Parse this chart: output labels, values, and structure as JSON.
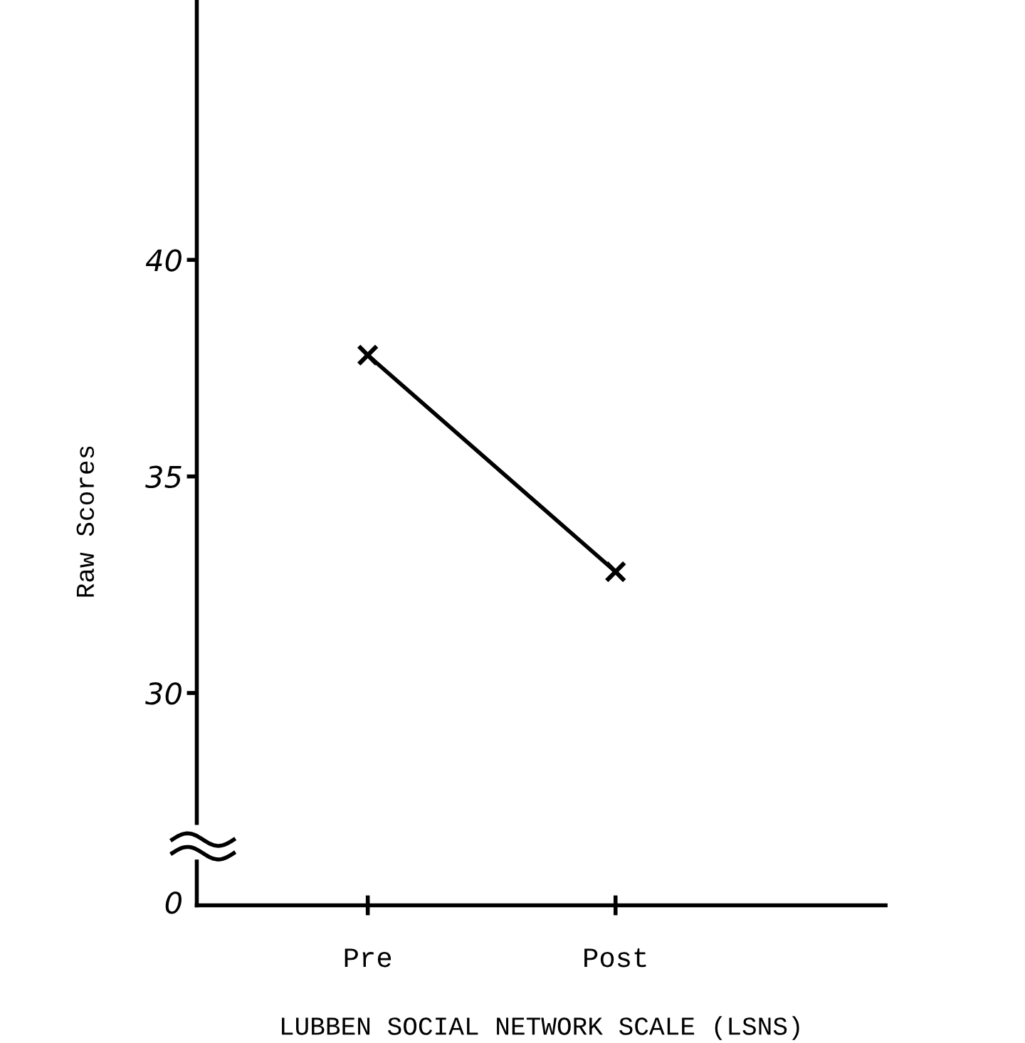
{
  "chart_data": {
    "type": "line",
    "ylabel": "Raw Scores",
    "xlabel": "LUBBEN SOCIAL NETWORK SCALE (LSNS)",
    "categories": [
      "Pre",
      "Post"
    ],
    "series": [
      {
        "color": "#000000",
        "values": [
          37.8,
          32.8
        ]
      }
    ],
    "ylim": [
      27,
      46
    ],
    "yticks": [
      30,
      35,
      40
    ],
    "marker": "cross",
    "line_style": "solid",
    "grid": false,
    "legend": false,
    "annotations": [
      "0"
    ]
  }
}
